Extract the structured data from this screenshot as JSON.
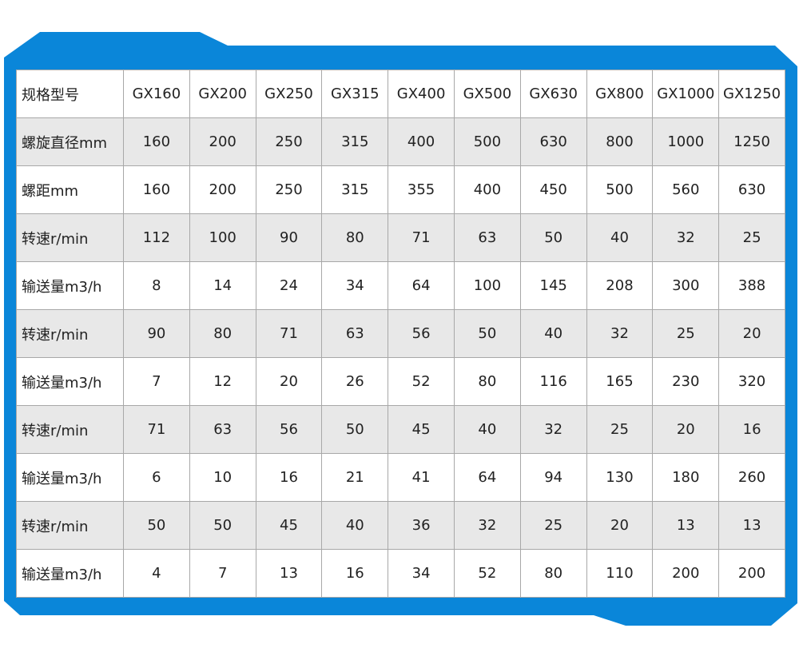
{
  "colors": {
    "frame": "#0a86d9",
    "row_alt": "#e8e8e8",
    "grid": "#a8a8a8"
  },
  "header": [
    "规格型号",
    "GX160",
    "GX200",
    "GX250",
    "GX315",
    "GX400",
    "GX500",
    "GX630",
    "GX800",
    "GX1000",
    "GX1250"
  ],
  "rows": [
    [
      "螺旋直径mm",
      "160",
      "200",
      "250",
      "315",
      "400",
      "500",
      "630",
      "800",
      "1000",
      "1250"
    ],
    [
      "螺距mm",
      "160",
      "200",
      "250",
      "315",
      "355",
      "400",
      "450",
      "500",
      "560",
      "630"
    ],
    [
      "转速r/min",
      "112",
      "100",
      "90",
      "80",
      "71",
      "63",
      "50",
      "40",
      "32",
      "25"
    ],
    [
      "输送量m3/h",
      "8",
      "14",
      "24",
      "34",
      "64",
      "100",
      "145",
      "208",
      "300",
      "388"
    ],
    [
      "转速r/min",
      "90",
      "80",
      "71",
      "63",
      "56",
      "50",
      "40",
      "32",
      "25",
      "20"
    ],
    [
      "输送量m3/h",
      "7",
      "12",
      "20",
      "26",
      "52",
      "80",
      "116",
      "165",
      "230",
      "320"
    ],
    [
      "转速r/min",
      "71",
      "63",
      "56",
      "50",
      "45",
      "40",
      "32",
      "25",
      "20",
      "16"
    ],
    [
      "输送量m3/h",
      "6",
      "10",
      "16",
      "21",
      "41",
      "64",
      "94",
      "130",
      "180",
      "260"
    ],
    [
      "转速r/min",
      "50",
      "50",
      "45",
      "40",
      "36",
      "32",
      "25",
      "20",
      "13",
      "13"
    ],
    [
      "输送量m3/h",
      "4",
      "7",
      "13",
      "16",
      "34",
      "52",
      "80",
      "110",
      "200",
      "200"
    ]
  ]
}
